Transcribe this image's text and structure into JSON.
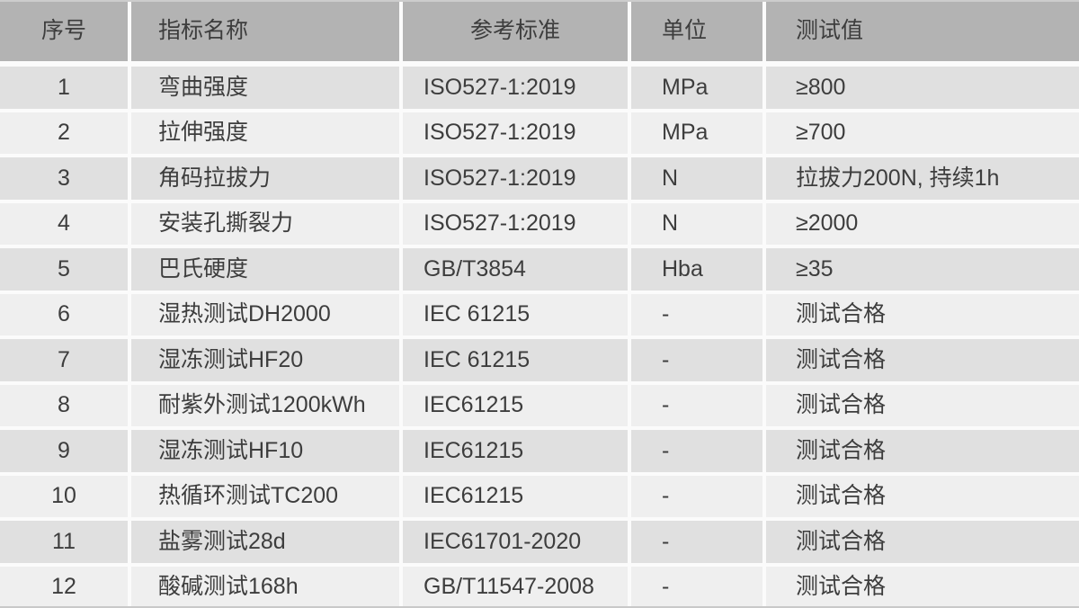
{
  "chart_data": {
    "type": "table",
    "columns": [
      "序号",
      "指标名称",
      "参考标准",
      "单位",
      "测试值"
    ],
    "rows": [
      [
        "1",
        "弯曲强度",
        "ISO527-1:2019",
        "MPa",
        "≥800"
      ],
      [
        "2",
        "拉伸强度",
        "ISO527-1:2019",
        "MPa",
        "≥700"
      ],
      [
        "3",
        "角码拉拔力",
        "ISO527-1:2019",
        "N",
        "拉拔力200N, 持续1h"
      ],
      [
        "4",
        "安装孔撕裂力",
        "ISO527-1:2019",
        "N",
        "≥2000"
      ],
      [
        "5",
        "巴氏硬度",
        "GB/T3854",
        "Hba",
        "≥35"
      ],
      [
        "6",
        "湿热测试DH2000",
        "IEC 61215",
        "-",
        "测试合格"
      ],
      [
        "7",
        "湿冻测试HF20",
        "IEC 61215",
        "-",
        "测试合格"
      ],
      [
        "8",
        "耐紫外测试1200kWh",
        "IEC61215",
        "-",
        "测试合格"
      ],
      [
        "9",
        "湿冻测试HF10",
        "IEC61215",
        "-",
        "测试合格"
      ],
      [
        "10",
        "热循环测试TC200",
        "IEC61215",
        "-",
        "测试合格"
      ],
      [
        "11",
        "盐雾测试28d",
        "IEC61701-2020",
        "-",
        "测试合格"
      ],
      [
        "12",
        "酸碱测试168h",
        "GB/T11547-2008",
        "-",
        "测试合格"
      ]
    ]
  },
  "colors": {
    "header_bg": "#b3b3b3",
    "row_odd_bg": "#e0e0e0",
    "row_even_bg": "#efefef",
    "separator": "#fbfbfb",
    "text": "#3d3d3d"
  }
}
